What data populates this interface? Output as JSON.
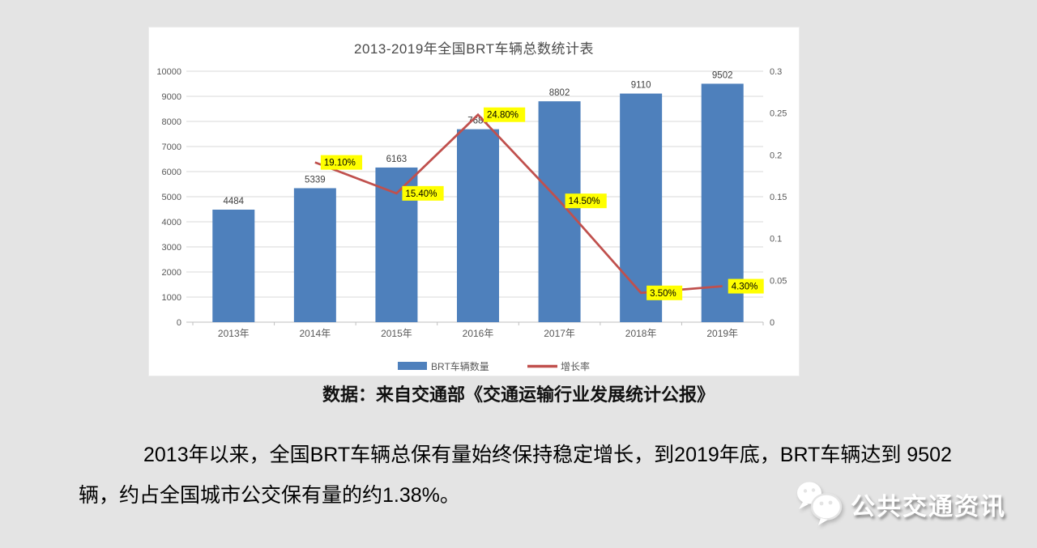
{
  "colors": {
    "background": "#e4e4e4",
    "card": "#ffffff",
    "bar": "#4E80BC",
    "line": "#C0504D",
    "highlight": "#FFFF00",
    "grid": "#d9d9d9",
    "axis_text": "#595959",
    "bar_label_text": "#404040"
  },
  "chart_data": {
    "type": "bar",
    "subtype": "combo-bar-line",
    "title": "2013-2019年全国BRT车辆总数统计表",
    "categories": [
      "2013年",
      "2014年",
      "2015年",
      "2016年",
      "2017年",
      "2018年",
      "2019年"
    ],
    "series": [
      {
        "name": "BRT车辆数量",
        "type": "bar",
        "axis": "left",
        "color": "#4E80BC",
        "values": [
          4484,
          5339,
          6163,
          7689,
          8802,
          9110,
          9502
        ],
        "value_labels": [
          "4484",
          "5339",
          "6163",
          "7689",
          "8802",
          "9110",
          "9502"
        ]
      },
      {
        "name": "增长率",
        "type": "line",
        "axis": "right",
        "color": "#C0504D",
        "values": [
          null,
          0.191,
          0.154,
          0.248,
          0.145,
          0.035,
          0.043
        ],
        "point_labels": [
          "",
          "19.10%",
          "15.40%",
          "24.80%",
          "14.50%",
          "3.50%",
          "4.30%"
        ],
        "label_bg": "#FFFF00"
      }
    ],
    "left_axis": {
      "min": 0,
      "max": 10000,
      "step": 1000
    },
    "right_axis": {
      "min": 0,
      "max": 0.3,
      "step": 0.05,
      "tick_labels": [
        "0",
        "0.05",
        "0.1",
        "0.15",
        "0.2",
        "0.25",
        "0.3"
      ]
    },
    "legend_position": "bottom",
    "grid": true
  },
  "caption": "数据：来自交通部《交通运输行业发展统计公报》",
  "body_text": "2013年以来，全国BRT车辆总保有量始终保持稳定增长，到2019年底，BRT车辆达到 9502辆，约占全国城市公交保有量的约1.38%。",
  "watermark": {
    "label": "公共交通资讯",
    "icon": "wechat-icon"
  }
}
